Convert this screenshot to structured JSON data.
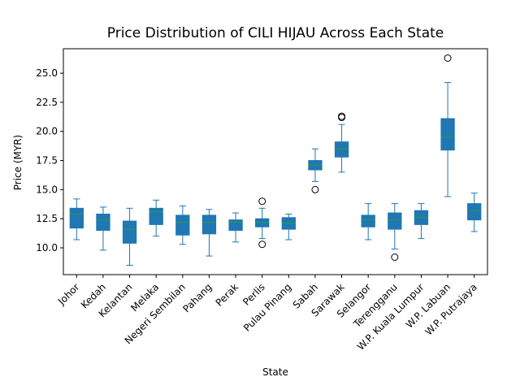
{
  "chart_data": {
    "type": "box",
    "title": "Price Distribution of CILI HIJAU Across Each State",
    "xlabel": "State",
    "ylabel": "Price (MYR)",
    "ylim": [
      7.7,
      27.1
    ],
    "yticks": [
      "10.0",
      "12.5",
      "15.0",
      "17.5",
      "20.0",
      "22.5",
      "25.0"
    ],
    "ytick_values": [
      10.0,
      12.5,
      15.0,
      17.5,
      20.0,
      22.5,
      25.0
    ],
    "grid": false,
    "colors": {
      "box_fill": "#1f77b4",
      "box_edge": "#1f77b4",
      "median": "#2ca02c",
      "whisker": "#1f77b4",
      "outlier_edge": "#000000"
    },
    "categories": [
      "Johor",
      "Kedah",
      "Kelantan",
      "Melaka",
      "Negeri Sembilan",
      "Pahang",
      "Perak",
      "Perlis",
      "Pulau Pinang",
      "Sabah",
      "Sarawak",
      "Selangor",
      "Terengganu",
      "W.P. Kuala Lumpur",
      "W.P. Labuan",
      "W.P. Putrajaya"
    ],
    "boxes": [
      {
        "state": "Johor",
        "whisker_low": 10.7,
        "q1": 11.7,
        "median": 12.9,
        "q3": 13.4,
        "whisker_high": 14.2,
        "outliers": []
      },
      {
        "state": "Kedah",
        "whisker_low": 9.8,
        "q1": 11.5,
        "median": 12.4,
        "q3": 12.9,
        "whisker_high": 13.5,
        "outliers": []
      },
      {
        "state": "Kelantan",
        "whisker_low": 8.5,
        "q1": 10.4,
        "median": 11.6,
        "q3": 12.3,
        "whisker_high": 13.4,
        "outliers": []
      },
      {
        "state": "Melaka",
        "whisker_low": 11.0,
        "q1": 12.0,
        "median": 13.1,
        "q3": 13.4,
        "whisker_high": 14.1,
        "outliers": []
      },
      {
        "state": "Negeri Sembilan",
        "whisker_low": 10.3,
        "q1": 11.1,
        "median": 12.2,
        "q3": 12.8,
        "whisker_high": 13.6,
        "outliers": []
      },
      {
        "state": "Pahang",
        "whisker_low": 9.3,
        "q1": 11.2,
        "median": 12.2,
        "q3": 12.8,
        "whisker_high": 13.3,
        "outliers": []
      },
      {
        "state": "Perak",
        "whisker_low": 10.5,
        "q1": 11.5,
        "median": 12.2,
        "q3": 12.4,
        "whisker_high": 13.0,
        "outliers": []
      },
      {
        "state": "Perlis",
        "whisker_low": 10.8,
        "q1": 11.8,
        "median": 12.2,
        "q3": 12.5,
        "whisker_high": 13.4,
        "outliers": [
          14.0,
          10.3
        ]
      },
      {
        "state": "Pulau Pinang",
        "whisker_low": 10.7,
        "q1": 11.6,
        "median": 12.1,
        "q3": 12.6,
        "whisker_high": 12.9,
        "outliers": []
      },
      {
        "state": "Sabah",
        "whisker_low": 15.7,
        "q1": 16.7,
        "median": 17.1,
        "q3": 17.5,
        "whisker_high": 18.5,
        "outliers": [
          15.0
        ]
      },
      {
        "state": "Sarawak",
        "whisker_low": 16.5,
        "q1": 17.8,
        "median": 18.5,
        "q3": 19.1,
        "whisker_high": 20.6,
        "outliers": [
          21.2,
          21.3
        ]
      },
      {
        "state": "Selangor",
        "whisker_low": 10.7,
        "q1": 11.8,
        "median": 12.4,
        "q3": 12.8,
        "whisker_high": 13.8,
        "outliers": []
      },
      {
        "state": "Terengganu",
        "whisker_low": 9.9,
        "q1": 11.6,
        "median": 12.4,
        "q3": 13.0,
        "whisker_high": 13.8,
        "outliers": [
          9.2
        ]
      },
      {
        "state": "W.P. Kuala Lumpur",
        "whisker_low": 10.8,
        "q1": 12.0,
        "median": 12.6,
        "q3": 13.2,
        "whisker_high": 13.8,
        "outliers": []
      },
      {
        "state": "W.P. Labuan",
        "whisker_low": 14.4,
        "q1": 18.4,
        "median": 19.5,
        "q3": 21.1,
        "whisker_high": 24.2,
        "outliers": [
          26.3
        ]
      },
      {
        "state": "W.P. Putrajaya",
        "whisker_low": 11.4,
        "q1": 12.4,
        "median": 13.2,
        "q3": 13.8,
        "whisker_high": 14.7,
        "outliers": []
      }
    ]
  }
}
